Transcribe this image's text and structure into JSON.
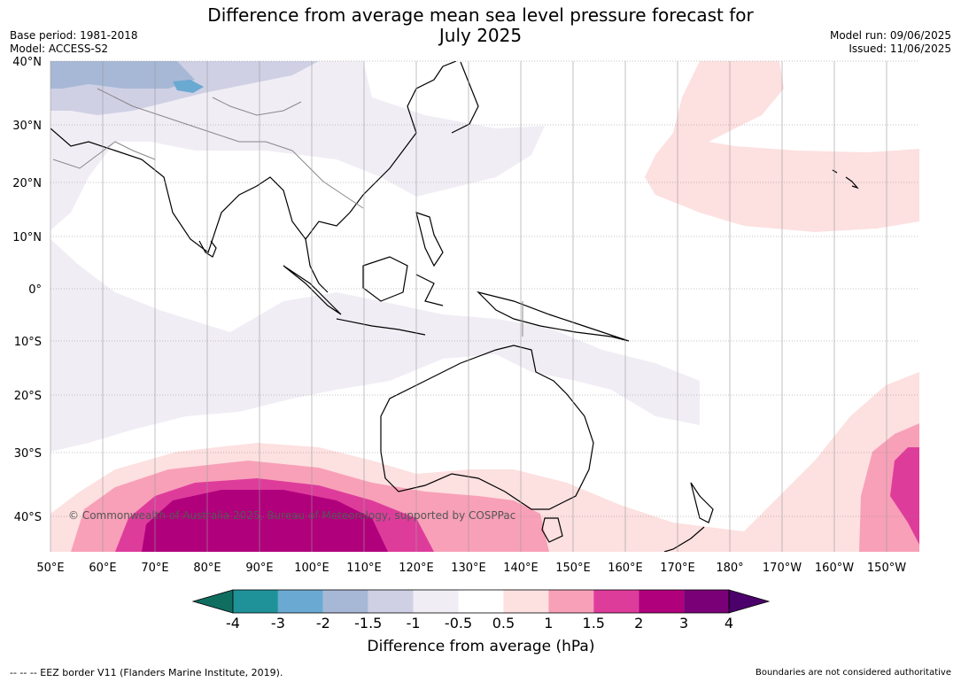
{
  "title": {
    "line1": "Difference from average mean sea level pressure forecast for",
    "line2": "July 2025"
  },
  "meta": {
    "base_period": "Base period: 1981-2018",
    "model": "Model: ACCESS-S2",
    "model_run": "Model run: 09/06/2025",
    "issued": "Issued: 11/06/2025"
  },
  "map": {
    "lat_labels": [
      "40°N",
      "30°N",
      "20°N",
      "10°N",
      "0°",
      "10°S",
      "20°S",
      "30°S",
      "40°S"
    ],
    "lon_labels": [
      "50°E",
      "60°E",
      "70°E",
      "80°E",
      "90°E",
      "100°E",
      "110°E",
      "120°E",
      "130°E",
      "140°E",
      "150°E",
      "160°E",
      "170°E",
      "180°",
      "170°W",
      "160°W",
      "150°W"
    ],
    "copyright": "© Commonwealth of Australia 2025, Bureau of Meteorology, supported by COSPPac"
  },
  "colorbar": {
    "labels": [
      "-4",
      "-3",
      "-2",
      "-1.5",
      "-1",
      "-0.5",
      "0.5",
      "1",
      "1.5",
      "2",
      "3",
      "4"
    ],
    "colors": [
      "#0f6e60",
      "#1f9299",
      "#6aa9d1",
      "#a7b8d6",
      "#cfd0e4",
      "#f1edf5",
      "#ffffff",
      "#fde0e0",
      "#f8a0b8",
      "#de3c9b",
      "#b1007c",
      "#7a0077",
      "#4b006b"
    ],
    "axis_label": "Difference from average (hPa)"
  },
  "footer": {
    "eez": "--  --  -- EEZ border V11 (Flanders Marine Institute, 2019).",
    "disclaimer": "Boundaries are not considered authoritative"
  }
}
